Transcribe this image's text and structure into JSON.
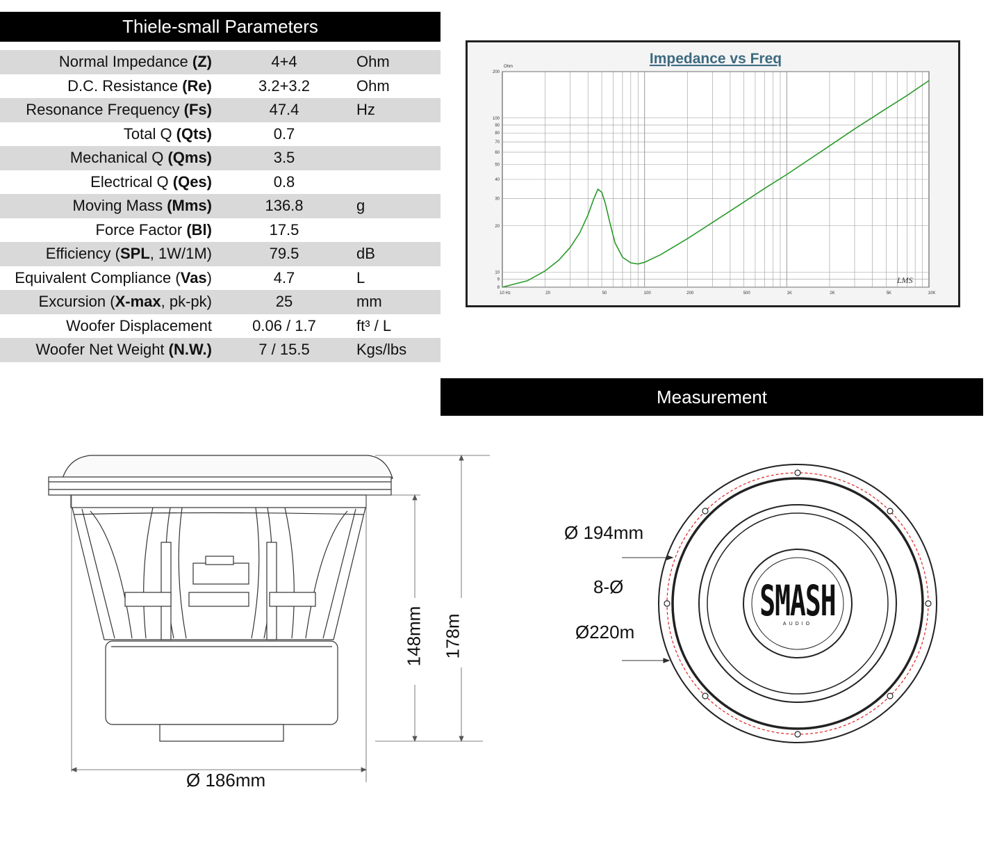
{
  "params_header": "Thiele-small Parameters",
  "measure_header": "Measurement",
  "parameters": [
    {
      "name": "Normal Impedance ",
      "abbr": "(Z)",
      "suffix": "",
      "value": "4+4",
      "unit": "Ohm"
    },
    {
      "name": "D.C. Resistance ",
      "abbr": "(Re)",
      "suffix": "",
      "value": "3.2+3.2",
      "unit": "Ohm"
    },
    {
      "name": "Resonance Frequency ",
      "abbr": "(Fs)",
      "suffix": "",
      "value": "47.4",
      "unit": "Hz"
    },
    {
      "name": "Total Q ",
      "abbr": "(Qts)",
      "suffix": "",
      "value": "0.7",
      "unit": ""
    },
    {
      "name": "Mechanical Q ",
      "abbr": "(Qms)",
      "suffix": "",
      "value": "3.5",
      "unit": ""
    },
    {
      "name": "Electrical Q ",
      "abbr": "(Qes)",
      "suffix": "",
      "value": "0.8",
      "unit": ""
    },
    {
      "name": "Moving Mass ",
      "abbr": "(Mms)",
      "suffix": "",
      "value": "136.8",
      "unit": "g"
    },
    {
      "name": "Force Factor ",
      "abbr": "(Bl)",
      "suffix": "",
      "value": "17.5",
      "unit": ""
    },
    {
      "name": "Efficiency (",
      "abbr": "SPL",
      "suffix": ", 1W/1M)",
      "value": "79.5",
      "unit": "dB"
    },
    {
      "name": "Equivalent Compliance (",
      "abbr": "Vas",
      "suffix": ")",
      "value": "4.7",
      "unit": "L"
    },
    {
      "name": "Excursion (",
      "abbr": "X-max",
      "suffix": ", pk-pk)",
      "value": "25",
      "unit": "mm"
    },
    {
      "name": "Woofer Displacement",
      "abbr": "",
      "suffix": "",
      "value": "0.06 / 1.7",
      "unit": "ft³ / L"
    },
    {
      "name": "Woofer Net Weight ",
      "abbr": "(N.W.)",
      "suffix": "",
      "value": "7 / 15.5",
      "unit": "Kgs/lbs"
    }
  ],
  "chart_data": {
    "type": "line",
    "title": "Impedance vs Freq",
    "ylabel": "Ohm",
    "xscale": "log",
    "yscale": "log",
    "xlim": [
      10,
      10000
    ],
    "ylim": [
      8,
      200
    ],
    "grid": true,
    "x_tick_labels": [
      "10 Hz",
      "20",
      "50",
      "100",
      "200",
      "500",
      "1K",
      "2K",
      "5K",
      "10K"
    ],
    "x_tick_values": [
      10,
      20,
      50,
      100,
      200,
      500,
      1000,
      2000,
      5000,
      10000
    ],
    "y_tick_labels": [
      "200",
      "100",
      "90",
      "80",
      "70",
      "60",
      "50",
      "40",
      "30",
      "20",
      "10",
      "9",
      "8"
    ],
    "y_tick_values": [
      200,
      100,
      90,
      80,
      70,
      60,
      50,
      40,
      30,
      20,
      10,
      9,
      8
    ],
    "watermark": "LMS",
    "series": [
      {
        "color": "#2a9a2a",
        "x": [
          10,
          15,
          20,
          25,
          30,
          35,
          40,
          44,
          47,
          50,
          53,
          57,
          62,
          70,
          80,
          90,
          100,
          130,
          200,
          300,
          500,
          700,
          1000,
          2000,
          3000,
          5000,
          7000,
          10000
        ],
        "y": [
          8.0,
          8.8,
          10.2,
          12.0,
          14.5,
          18.0,
          23.5,
          30.0,
          34.5,
          33.0,
          28.0,
          21.0,
          15.5,
          12.5,
          11.5,
          11.3,
          11.6,
          13.0,
          16.5,
          21.0,
          28.5,
          35.0,
          43.0,
          66.0,
          85.0,
          115.0,
          140.0,
          175.0
        ]
      }
    ]
  },
  "dimensions": {
    "outer_diameter": "Ø 186mm",
    "height_148": "148mm",
    "height_178": "178m",
    "cutout": "Ø 194mm",
    "holes": "8-Ø",
    "frame": "Ø220m",
    "logo_text": "SMASH",
    "logo_sub": "AUDIO"
  }
}
